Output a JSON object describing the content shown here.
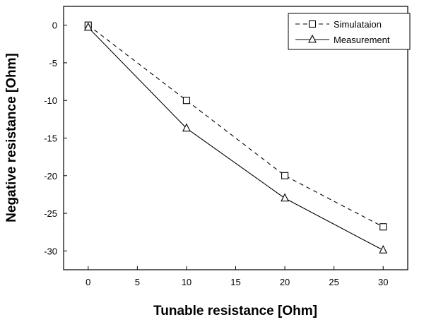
{
  "chart_data": {
    "type": "line",
    "xlabel": "Tunable resistance [Ohm]",
    "ylabel": "Negative resistance [Ohm]",
    "xlim": [
      -2.5,
      32.5
    ],
    "ylim": [
      -32.5,
      2.5
    ],
    "xticks": [
      0,
      5,
      10,
      15,
      20,
      25,
      30
    ],
    "yticks": [
      0,
      -5,
      -10,
      -15,
      -20,
      -25,
      -30
    ],
    "grid": false,
    "legend_position": "top-right",
    "series": [
      {
        "name": "Simulataion",
        "marker": "square",
        "line_style": "dashed",
        "x": [
          0,
          10,
          20,
          30
        ],
        "y": [
          0,
          -10,
          -20,
          -26.8
        ]
      },
      {
        "name": "Measurement",
        "marker": "triangle",
        "line_style": "solid",
        "x": [
          0,
          10,
          20,
          30
        ],
        "y": [
          -0.3,
          -13.7,
          -23,
          -29.9
        ]
      }
    ]
  }
}
